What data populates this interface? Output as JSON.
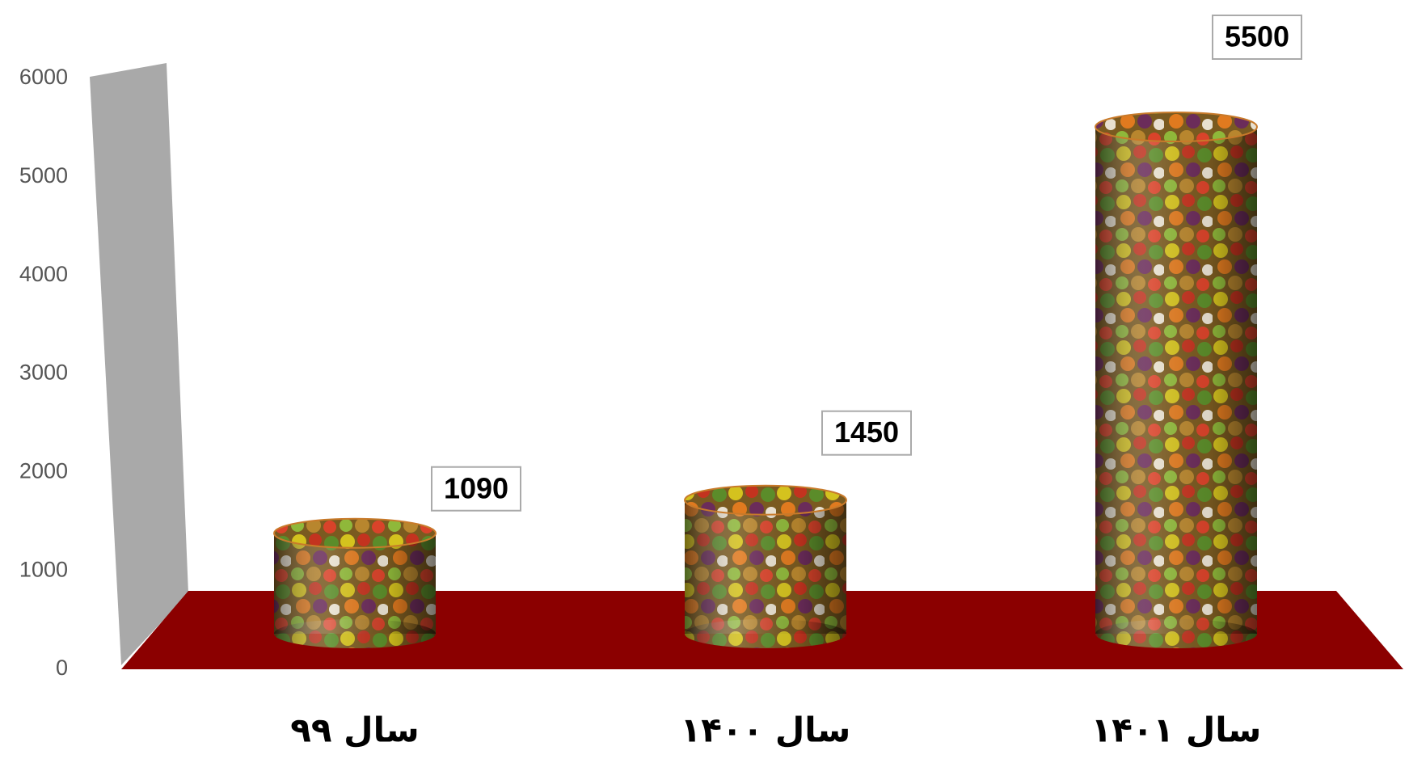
{
  "chart_data": {
    "type": "cylinder",
    "categories": [
      "سال ۹۹",
      "سال ۱۴۰۰",
      "سال ۱۴۰۱"
    ],
    "values": [
      1090,
      1450,
      5500
    ],
    "ylim": [
      0,
      6000
    ],
    "yticks": [
      0,
      1000,
      2000,
      3000,
      4000,
      5000,
      6000
    ]
  }
}
